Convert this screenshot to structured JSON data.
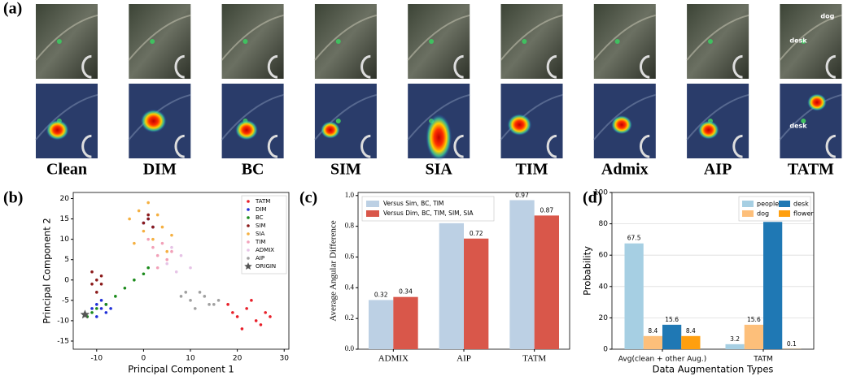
{
  "figure": {
    "panel_labels": [
      "(a)",
      "(b)",
      "(c)",
      "(d)"
    ],
    "image_labels": [
      "Clean",
      "DIM",
      "BC",
      "SIM",
      "SIA",
      "TIM",
      "Admix",
      "AIP",
      "TATM"
    ],
    "tatm_overlay_text": [
      "dog",
      "desk",
      "desk"
    ]
  },
  "chart_data": [
    {
      "type": "scatter",
      "xlabel": "Principal Component 1",
      "ylabel": "Principal Component 2",
      "xlim": [
        -15,
        31
      ],
      "ylim": [
        -17,
        21.5
      ],
      "xticks": [
        -10,
        0,
        10,
        20,
        30
      ],
      "yticks": [
        -15,
        -10,
        -5,
        0,
        5,
        10,
        15,
        20
      ],
      "grid": false,
      "legend": "upper right",
      "series": [
        {
          "name": "TATM",
          "color": "#e8202a",
          "marker": "dot",
          "x": [
            18,
            20,
            22,
            24,
            26,
            21,
            23,
            25,
            19,
            27
          ],
          "values": [
            -6,
            -9,
            -7,
            -10,
            -8,
            -12,
            -5,
            -11,
            -8,
            -9
          ]
        },
        {
          "name": "DIM",
          "color": "#1f2fd8",
          "marker": "dot",
          "x": [
            -10,
            -9,
            -8,
            -11,
            -9,
            -7,
            -10,
            -8,
            0,
            1,
            2
          ],
          "values": [
            -6,
            -7,
            -8,
            -7,
            -5,
            -7,
            -9,
            -6,
            14,
            15,
            13
          ]
        },
        {
          "name": "BC",
          "color": "#1a8a1a",
          "marker": "dot",
          "x": [
            -12,
            -11,
            -10,
            -8,
            -6,
            -4,
            -2,
            0,
            1
          ],
          "values": [
            -9,
            -8,
            -7,
            -6,
            -4,
            -2,
            0,
            1.5,
            3
          ]
        },
        {
          "name": "SIM",
          "color": "#8b1a1a",
          "marker": "dot",
          "x": [
            -11,
            -10,
            -9,
            -10,
            -11,
            -9,
            0,
            1,
            2,
            1
          ],
          "values": [
            2,
            0,
            -1,
            -3,
            -1,
            1,
            14,
            15,
            13,
            16
          ]
        },
        {
          "name": "SIA",
          "color": "#f5b041",
          "marker": "dot",
          "x": [
            -3,
            -1,
            0,
            2,
            4,
            6,
            -2,
            3,
            1,
            5
          ],
          "values": [
            15,
            17,
            12,
            10,
            13,
            11,
            9,
            16,
            19,
            7
          ]
        },
        {
          "name": "TIM",
          "color": "#f2a0b8",
          "marker": "dot",
          "x": [
            2,
            3,
            4,
            5,
            1,
            3,
            6
          ],
          "values": [
            8,
            6,
            9,
            5,
            10,
            3,
            7
          ]
        },
        {
          "name": "ADMIX",
          "color": "#e6c3e6",
          "marker": "dot",
          "x": [
            5,
            7,
            8,
            10,
            6
          ],
          "values": [
            4,
            2,
            6,
            3,
            8
          ]
        },
        {
          "name": "AIP",
          "color": "#a0a0a0",
          "marker": "dot",
          "x": [
            8,
            10,
            12,
            14,
            16,
            11,
            13,
            15,
            9
          ],
          "values": [
            -4,
            -5,
            -3,
            -6,
            -5,
            -7,
            -4,
            -6,
            -3
          ]
        },
        {
          "name": "ORIGIN",
          "color": "#555555",
          "marker": "star",
          "x": [
            -12.5
          ],
          "values": [
            -8.5
          ]
        }
      ]
    },
    {
      "type": "bar",
      "ylabel": "Average Angular Difference",
      "categories": [
        "ADMIX",
        "AIP",
        "TATM"
      ],
      "ylim": [
        0,
        1.02
      ],
      "yticks": [
        {
          "value": 0,
          "label": "0.0"
        },
        0.2,
        0.4,
        0.6,
        0.8,
        {
          "value": 1,
          "label": "1.0"
        }
      ],
      "grid": false,
      "legend": "upper left",
      "series": [
        {
          "name": "Versus Sim, BC, TIM",
          "color": "#bcd0e4",
          "values": [
            0.32,
            0.82,
            0.97
          ]
        },
        {
          "name": "Versus Dim, BC, TIM, SIM, SIA",
          "color": "#d9574a",
          "values": [
            0.34,
            0.72,
            0.87
          ]
        }
      ]
    },
    {
      "type": "bar",
      "xlabel": "Data Augmentation Types",
      "ylabel": "Probability",
      "categories": [
        "Avg(clean + other Aug.)",
        "TATM"
      ],
      "ylim": [
        0,
        100
      ],
      "yticks": [
        0,
        20,
        40,
        60,
        80,
        100
      ],
      "grid": true,
      "legend": "upper right",
      "series": [
        {
          "name": "people",
          "color": "#a6cfe3",
          "values": [
            67.5,
            3.2
          ]
        },
        {
          "name": "dog",
          "color": "#fdbf7a",
          "values": [
            8.4,
            15.6
          ]
        },
        {
          "name": "desk",
          "color": "#1f78b4",
          "values": [
            15.6,
            81.2
          ]
        },
        {
          "name": "flower",
          "color": "#ff9f0f",
          "values": [
            8.4,
            0.1
          ]
        }
      ]
    }
  ]
}
